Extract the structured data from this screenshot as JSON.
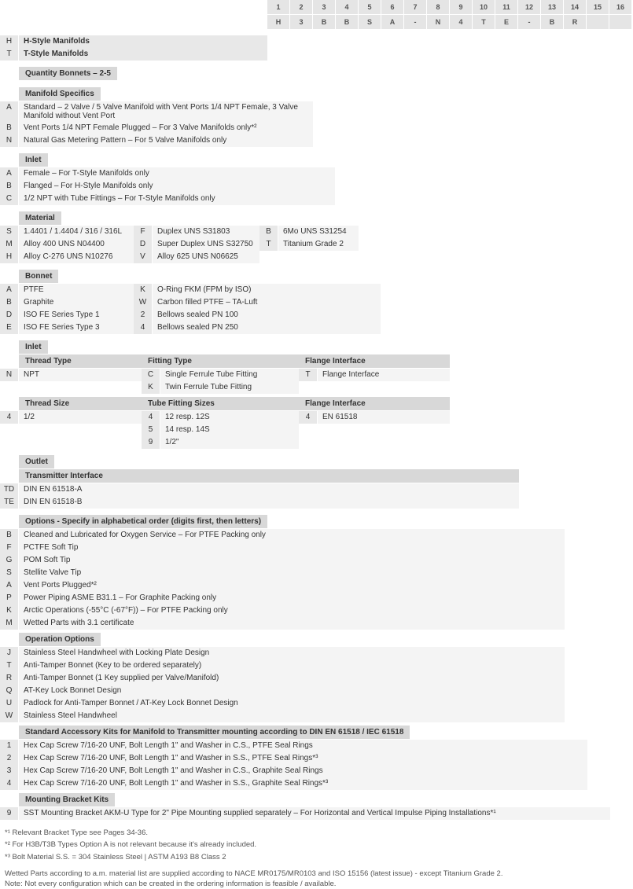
{
  "topNumbers": [
    "1",
    "2",
    "3",
    "4",
    "5",
    "6",
    "7",
    "8",
    "9",
    "10",
    "11",
    "12",
    "13",
    "14",
    "15",
    "16"
  ],
  "topCodes": [
    "H",
    "3",
    "B",
    "B",
    "S",
    "A",
    "-",
    "N",
    "4",
    "T",
    "E",
    "-",
    "B",
    "R",
    "",
    ""
  ],
  "styleManifolds": {
    "rows": [
      {
        "code": "H",
        "desc": "H-Style Manifolds"
      },
      {
        "code": "T",
        "desc": "T-Style Manifolds"
      }
    ]
  },
  "quantityBonnets": {
    "header": "Quantity Bonnets – 2-5"
  },
  "manifoldSpecifics": {
    "header": "Manifold Specifics",
    "rows": [
      {
        "code": "A",
        "desc": "Standard – 2 Valve / 5 Valve Manifold with Vent Ports 1/4 NPT Female, 3 Valve Manifold without Vent Port"
      },
      {
        "code": "B",
        "desc": "Vent Ports 1/4 NPT Female Plugged – For 3 Valve Manifolds only*²"
      },
      {
        "code": "N",
        "desc": "Natural Gas Metering Pattern – For 5 Valve Manifolds only"
      }
    ]
  },
  "inlet1": {
    "header": "Inlet",
    "rows": [
      {
        "code": "A",
        "desc": "Female – For T-Style Manifolds only"
      },
      {
        "code": "B",
        "desc": "Flanged – For H-Style Manifolds only"
      },
      {
        "code": "C",
        "desc": "1/2 NPT with Tube Fittings – For T-Style Manifolds only"
      }
    ]
  },
  "material": {
    "header": "Material",
    "col1": [
      {
        "code": "S",
        "desc": "1.4401 / 1.4404 / 316 / 316L"
      },
      {
        "code": "M",
        "desc": "Alloy 400 UNS N04400"
      },
      {
        "code": "H",
        "desc": "Alloy C-276 UNS N10276"
      }
    ],
    "col2": [
      {
        "code": "F",
        "desc": "Duplex UNS S31803"
      },
      {
        "code": "D",
        "desc": "Super Duplex UNS S32750"
      },
      {
        "code": "V",
        "desc": "Alloy 625 UNS N06625"
      }
    ],
    "col3": [
      {
        "code": "B",
        "desc": "6Mo UNS S31254"
      },
      {
        "code": "T",
        "desc": "Titanium Grade 2"
      }
    ]
  },
  "bonnet": {
    "header": "Bonnet",
    "col1": [
      {
        "code": "A",
        "desc": "PTFE"
      },
      {
        "code": "B",
        "desc": "Graphite"
      },
      {
        "code": "D",
        "desc": "ISO FE Series Type 1"
      },
      {
        "code": "E",
        "desc": "ISO FE Series Type 3"
      }
    ],
    "col2": [
      {
        "code": "K",
        "desc": "O-Ring FKM (FPM by ISO)"
      },
      {
        "code": "W",
        "desc": "Carbon filled PTFE – TA-Luft"
      },
      {
        "code": "2",
        "desc": "Bellows sealed PN 100"
      },
      {
        "code": "4",
        "desc": "Bellows sealed PN 250"
      }
    ]
  },
  "inlet2": {
    "header": "Inlet",
    "headers": {
      "c1": "Thread Type",
      "c2": "Fitting Type",
      "c3": "Flange Interface"
    },
    "col1": [
      {
        "code": "N",
        "desc": "NPT"
      }
    ],
    "col2": [
      {
        "code": "C",
        "desc": "Single Ferrule Tube Fitting"
      },
      {
        "code": "K",
        "desc": "Twin Ferrule Tube Fitting"
      }
    ],
    "col3": [
      {
        "code": "T",
        "desc": "Flange Interface"
      }
    ],
    "headers2": {
      "c1": "Thread Size",
      "c2": "Tube Fitting Sizes",
      "c3": "Flange Interface"
    },
    "col1b": [
      {
        "code": "4",
        "desc": "1/2"
      }
    ],
    "col2b": [
      {
        "code": "4",
        "desc": "12 resp. 12S"
      },
      {
        "code": "5",
        "desc": "14 resp. 14S"
      },
      {
        "code": "9",
        "desc": "1/2\""
      }
    ],
    "col3b": [
      {
        "code": "4",
        "desc": "EN 61518"
      }
    ]
  },
  "outlet": {
    "header": "Outlet",
    "sub": "Transmitter Interface",
    "rows": [
      {
        "code": "TD",
        "desc": "DIN EN 61518-A"
      },
      {
        "code": "TE",
        "desc": "DIN EN 61518-B"
      }
    ]
  },
  "options": {
    "header": "Options - Specify in alphabetical order (digits first, then letters)",
    "rows": [
      {
        "code": "B",
        "desc": "Cleaned and Lubricated for Oxygen Service – For PTFE Packing only"
      },
      {
        "code": "F",
        "desc": "PCTFE Soft Tip"
      },
      {
        "code": "G",
        "desc": "POM Soft Tip"
      },
      {
        "code": "S",
        "desc": "Stellite Valve Tip"
      },
      {
        "code": "A",
        "desc": "Vent Ports Plugged*²"
      },
      {
        "code": "P",
        "desc": "Power Piping ASME B31.1 – For Graphite Packing only"
      },
      {
        "code": "K",
        "desc": "Arctic Operations (-55°C (-67°F)) – For PTFE Packing only"
      },
      {
        "code": "M",
        "desc": "Wetted Parts with 3.1 certificate"
      }
    ]
  },
  "operationOptions": {
    "header": "Operation Options",
    "rows": [
      {
        "code": "J",
        "desc": "Stainless Steel Handwheel with Locking Plate Design"
      },
      {
        "code": "T",
        "desc": "Anti-Tamper Bonnet (Key to be ordered separately)"
      },
      {
        "code": "R",
        "desc": "Anti-Tamper Bonnet (1 Key supplied per Valve/Manifold)"
      },
      {
        "code": "Q",
        "desc": "AT-Key Lock Bonnet Design"
      },
      {
        "code": "U",
        "desc": "Padlock for Anti-Tamper Bonnet / AT-Key Lock Bonnet Design"
      },
      {
        "code": "W",
        "desc": "Stainless Steel Handwheel"
      }
    ]
  },
  "accessoryKits": {
    "header": "Standard Accessory Kits for Manifold to Transmitter mounting according to DIN EN 61518 / IEC 61518",
    "rows": [
      {
        "code": "1",
        "desc": "Hex Cap Screw 7/16-20 UNF, Bolt Length 1\" and Washer in C.S., PTFE Seal Rings"
      },
      {
        "code": "2",
        "desc": "Hex Cap Screw 7/16-20 UNF, Bolt Length 1\" and Washer in S.S., PTFE Seal Rings*³"
      },
      {
        "code": "3",
        "desc": "Hex Cap Screw 7/16-20 UNF, Bolt Length 1\" and Washer in C.S., Graphite Seal Rings"
      },
      {
        "code": "4",
        "desc": "Hex Cap Screw 7/16-20 UNF, Bolt Length 1\" and Washer in S.S., Graphite Seal Rings*³"
      }
    ]
  },
  "mountingBracket": {
    "header": "Mounting Bracket Kits",
    "rows": [
      {
        "code": "9",
        "desc": "SST Mounting Bracket AKM-U Type for 2\" Pipe Mounting supplied separately – For Horizontal and Vertical Impulse Piping Installations*¹"
      }
    ]
  },
  "footnotes": [
    "*¹ Relevant Bracket Type see Pages 34-36.",
    "*² For H3B/T3B Types Option A is not relevant because it's already included.",
    "*³ Bolt Material S.S. = 304 Stainless Steel | ASTM A193 B8 Class 2"
  ],
  "bottomNotes": [
    "Wetted Parts according to a.m. material list are supplied according to NACE MR0175/MR0103 and ISO 15156 (latest issue) - except Titanium Grade 2.",
    "Note: Not every configuration which can be created in the ordering information is feasible / available."
  ],
  "colors": {
    "headerBg": "#d8d8d8",
    "cellBg": "#e5e5e5",
    "codeBg": "#e8e8e8",
    "descBg": "#f4f4f4"
  }
}
